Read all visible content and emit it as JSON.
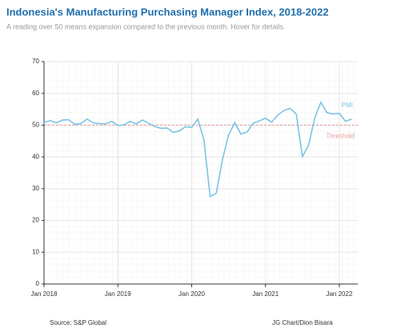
{
  "chart_data": {
    "type": "line",
    "title": "Indonesia's Manufacturing Purchasing Manager Index, 2018-2022",
    "subtitle": "A reading over 50 means expansion compared to the previous month. Hover for details.",
    "source": "Source: S&P Global",
    "credit": "JG Chart/Dion Bisara",
    "x": [
      "2018-01",
      "2018-02",
      "2018-03",
      "2018-04",
      "2018-05",
      "2018-06",
      "2018-07",
      "2018-08",
      "2018-09",
      "2018-10",
      "2018-11",
      "2018-12",
      "2019-01",
      "2019-02",
      "2019-03",
      "2019-04",
      "2019-05",
      "2019-06",
      "2019-07",
      "2019-08",
      "2019-09",
      "2019-10",
      "2019-11",
      "2019-12",
      "2020-01",
      "2020-02",
      "2020-03",
      "2020-04",
      "2020-05",
      "2020-06",
      "2020-07",
      "2020-08",
      "2020-09",
      "2020-10",
      "2020-11",
      "2020-12",
      "2021-01",
      "2021-02",
      "2021-03",
      "2021-04",
      "2021-05",
      "2021-06",
      "2021-07",
      "2021-08",
      "2021-09",
      "2021-10",
      "2021-11",
      "2021-12",
      "2022-01",
      "2022-02",
      "2022-03"
    ],
    "series": [
      {
        "name": "PMI",
        "color": "#7cc3e6",
        "values": [
          50.9,
          51.4,
          50.7,
          51.6,
          51.7,
          50.3,
          50.5,
          51.9,
          50.7,
          50.5,
          50.4,
          51.2,
          49.9,
          50.1,
          51.2,
          50.4,
          51.6,
          50.6,
          49.6,
          49.0,
          49.1,
          47.7,
          48.2,
          49.5,
          49.3,
          51.9,
          45.3,
          27.5,
          28.6,
          39.1,
          46.9,
          50.8,
          47.2,
          47.8,
          50.6,
          51.3,
          52.2,
          50.9,
          53.2,
          54.6,
          55.3,
          53.5,
          40.1,
          43.7,
          52.2,
          57.2,
          53.9,
          53.5,
          53.7,
          51.2,
          51.9
        ]
      }
    ],
    "threshold": {
      "value": 50,
      "label": "Threshold",
      "color": "#e8a0a0"
    },
    "xlim": [
      "2018-01",
      "2022-04"
    ],
    "xticks": [
      {
        "value": "2018-01",
        "label": "Jan 2018"
      },
      {
        "value": "2019-01",
        "label": "Jan 2019"
      },
      {
        "value": "2020-01",
        "label": "Jan 2020"
      },
      {
        "value": "2021-01",
        "label": "Jan 2021"
      },
      {
        "value": "2022-01",
        "label": "Jan 2022"
      }
    ],
    "ylim": [
      0,
      70
    ],
    "yticks": [
      0,
      10,
      20,
      30,
      40,
      50,
      60,
      70
    ],
    "grid": true
  }
}
